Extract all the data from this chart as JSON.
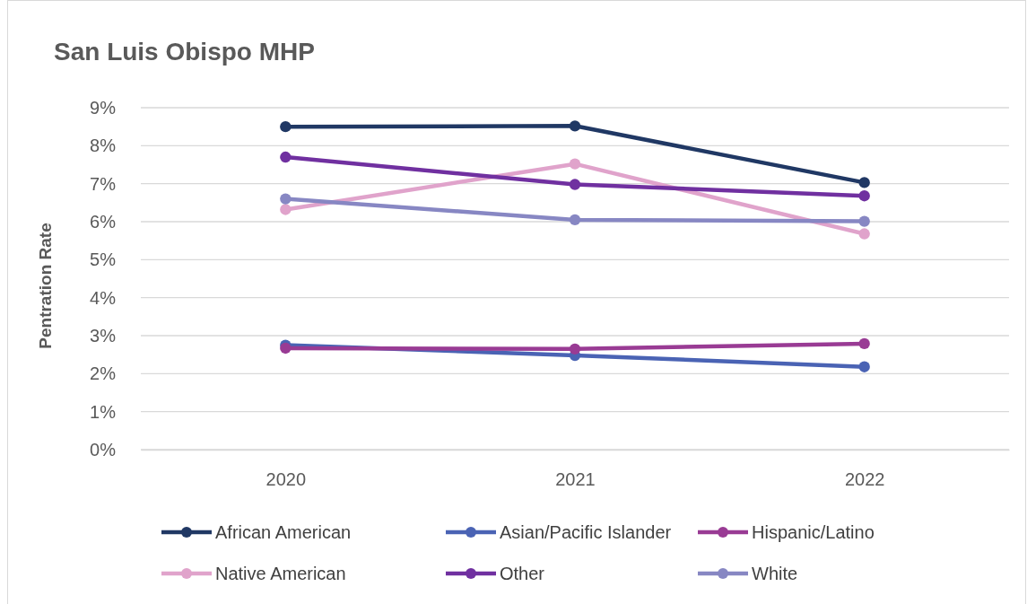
{
  "chart_data": {
    "type": "line",
    "title": "San Luis Obispo MHP",
    "ylabel": "Pentration Rate",
    "categories": [
      "2020",
      "2021",
      "2022"
    ],
    "series": [
      {
        "name": "African American",
        "color": "#203864",
        "values": [
          8.5,
          8.52,
          7.03
        ]
      },
      {
        "name": "Asian/Pacific Islander",
        "color": "#4a63b4",
        "values": [
          2.75,
          2.48,
          2.18
        ]
      },
      {
        "name": "Hispanic/Latino",
        "color": "#993b94",
        "values": [
          2.67,
          2.65,
          2.79
        ]
      },
      {
        "name": "Native American",
        "color": "#e0a3cb",
        "values": [
          6.32,
          7.52,
          5.68
        ]
      },
      {
        "name": "Other",
        "color": "#7030a0",
        "values": [
          7.7,
          6.98,
          6.68
        ]
      },
      {
        "name": "White",
        "color": "#8787c3",
        "values": [
          6.6,
          6.05,
          6.01
        ]
      }
    ],
    "ylim": [
      0,
      9
    ],
    "yticks": [
      {
        "value": 0,
        "label": "0%"
      },
      {
        "value": 1,
        "label": "1%"
      },
      {
        "value": 2,
        "label": "2%"
      },
      {
        "value": 3,
        "label": "3%"
      },
      {
        "value": 4,
        "label": "4%"
      },
      {
        "value": 5,
        "label": "5%"
      },
      {
        "value": 6,
        "label": "6%"
      },
      {
        "value": 7,
        "label": "7%"
      },
      {
        "value": 8,
        "label": "8%"
      },
      {
        "value": 9,
        "label": "9%"
      }
    ],
    "grid": "y",
    "legend": "bottom",
    "marker": "circle",
    "line_style": "solid"
  }
}
